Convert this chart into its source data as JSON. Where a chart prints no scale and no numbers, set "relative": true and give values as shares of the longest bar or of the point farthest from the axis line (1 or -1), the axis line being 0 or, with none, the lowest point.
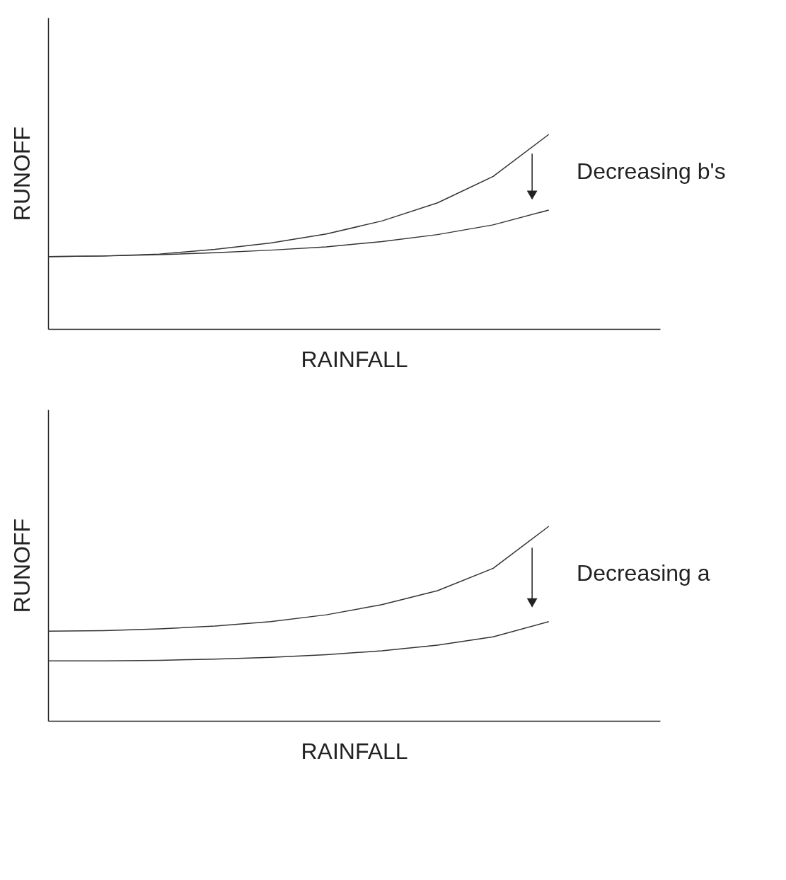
{
  "chart_data": [
    {
      "type": "line",
      "relative": true,
      "xlabel": "RAINFALL",
      "ylabel": "RUNOFF",
      "legend": false,
      "grid": false,
      "categories": [
        null,
        null,
        null,
        null,
        null,
        null,
        null,
        null,
        null,
        null,
        null,
        null
      ],
      "series": [
        {
          "color": "#333333",
          "values": [
            0.372,
            0.375,
            0.385,
            0.409,
            0.442,
            0.488,
            0.555,
            0.648,
            0.784,
            1,
            null,
            null
          ]
        },
        {
          "color": "#333333",
          "values": [
            0.372,
            0.375,
            0.382,
            0.392,
            0.405,
            0.422,
            0.449,
            0.485,
            0.535,
            0.611,
            null,
            null
          ]
        }
      ],
      "annotations": [
        "Decreasing b's"
      ]
    },
    {
      "type": "line",
      "relative": true,
      "xlabel": "RAINFALL",
      "ylabel": "RUNOFF",
      "legend": false,
      "grid": false,
      "categories": [
        null,
        null,
        null,
        null,
        null,
        null,
        null,
        null,
        null,
        null,
        null,
        null
      ],
      "series": [
        {
          "color": "#333333",
          "values": [
            0.461,
            0.464,
            0.473,
            0.487,
            0.51,
            0.545,
            0.597,
            0.669,
            0.784,
            1,
            null,
            null
          ]
        },
        {
          "color": "#333333",
          "values": [
            0.308,
            0.308,
            0.311,
            0.317,
            0.326,
            0.34,
            0.36,
            0.389,
            0.432,
            0.51,
            null,
            null
          ]
        }
      ],
      "annotations": [
        "Decreasing a"
      ]
    }
  ]
}
